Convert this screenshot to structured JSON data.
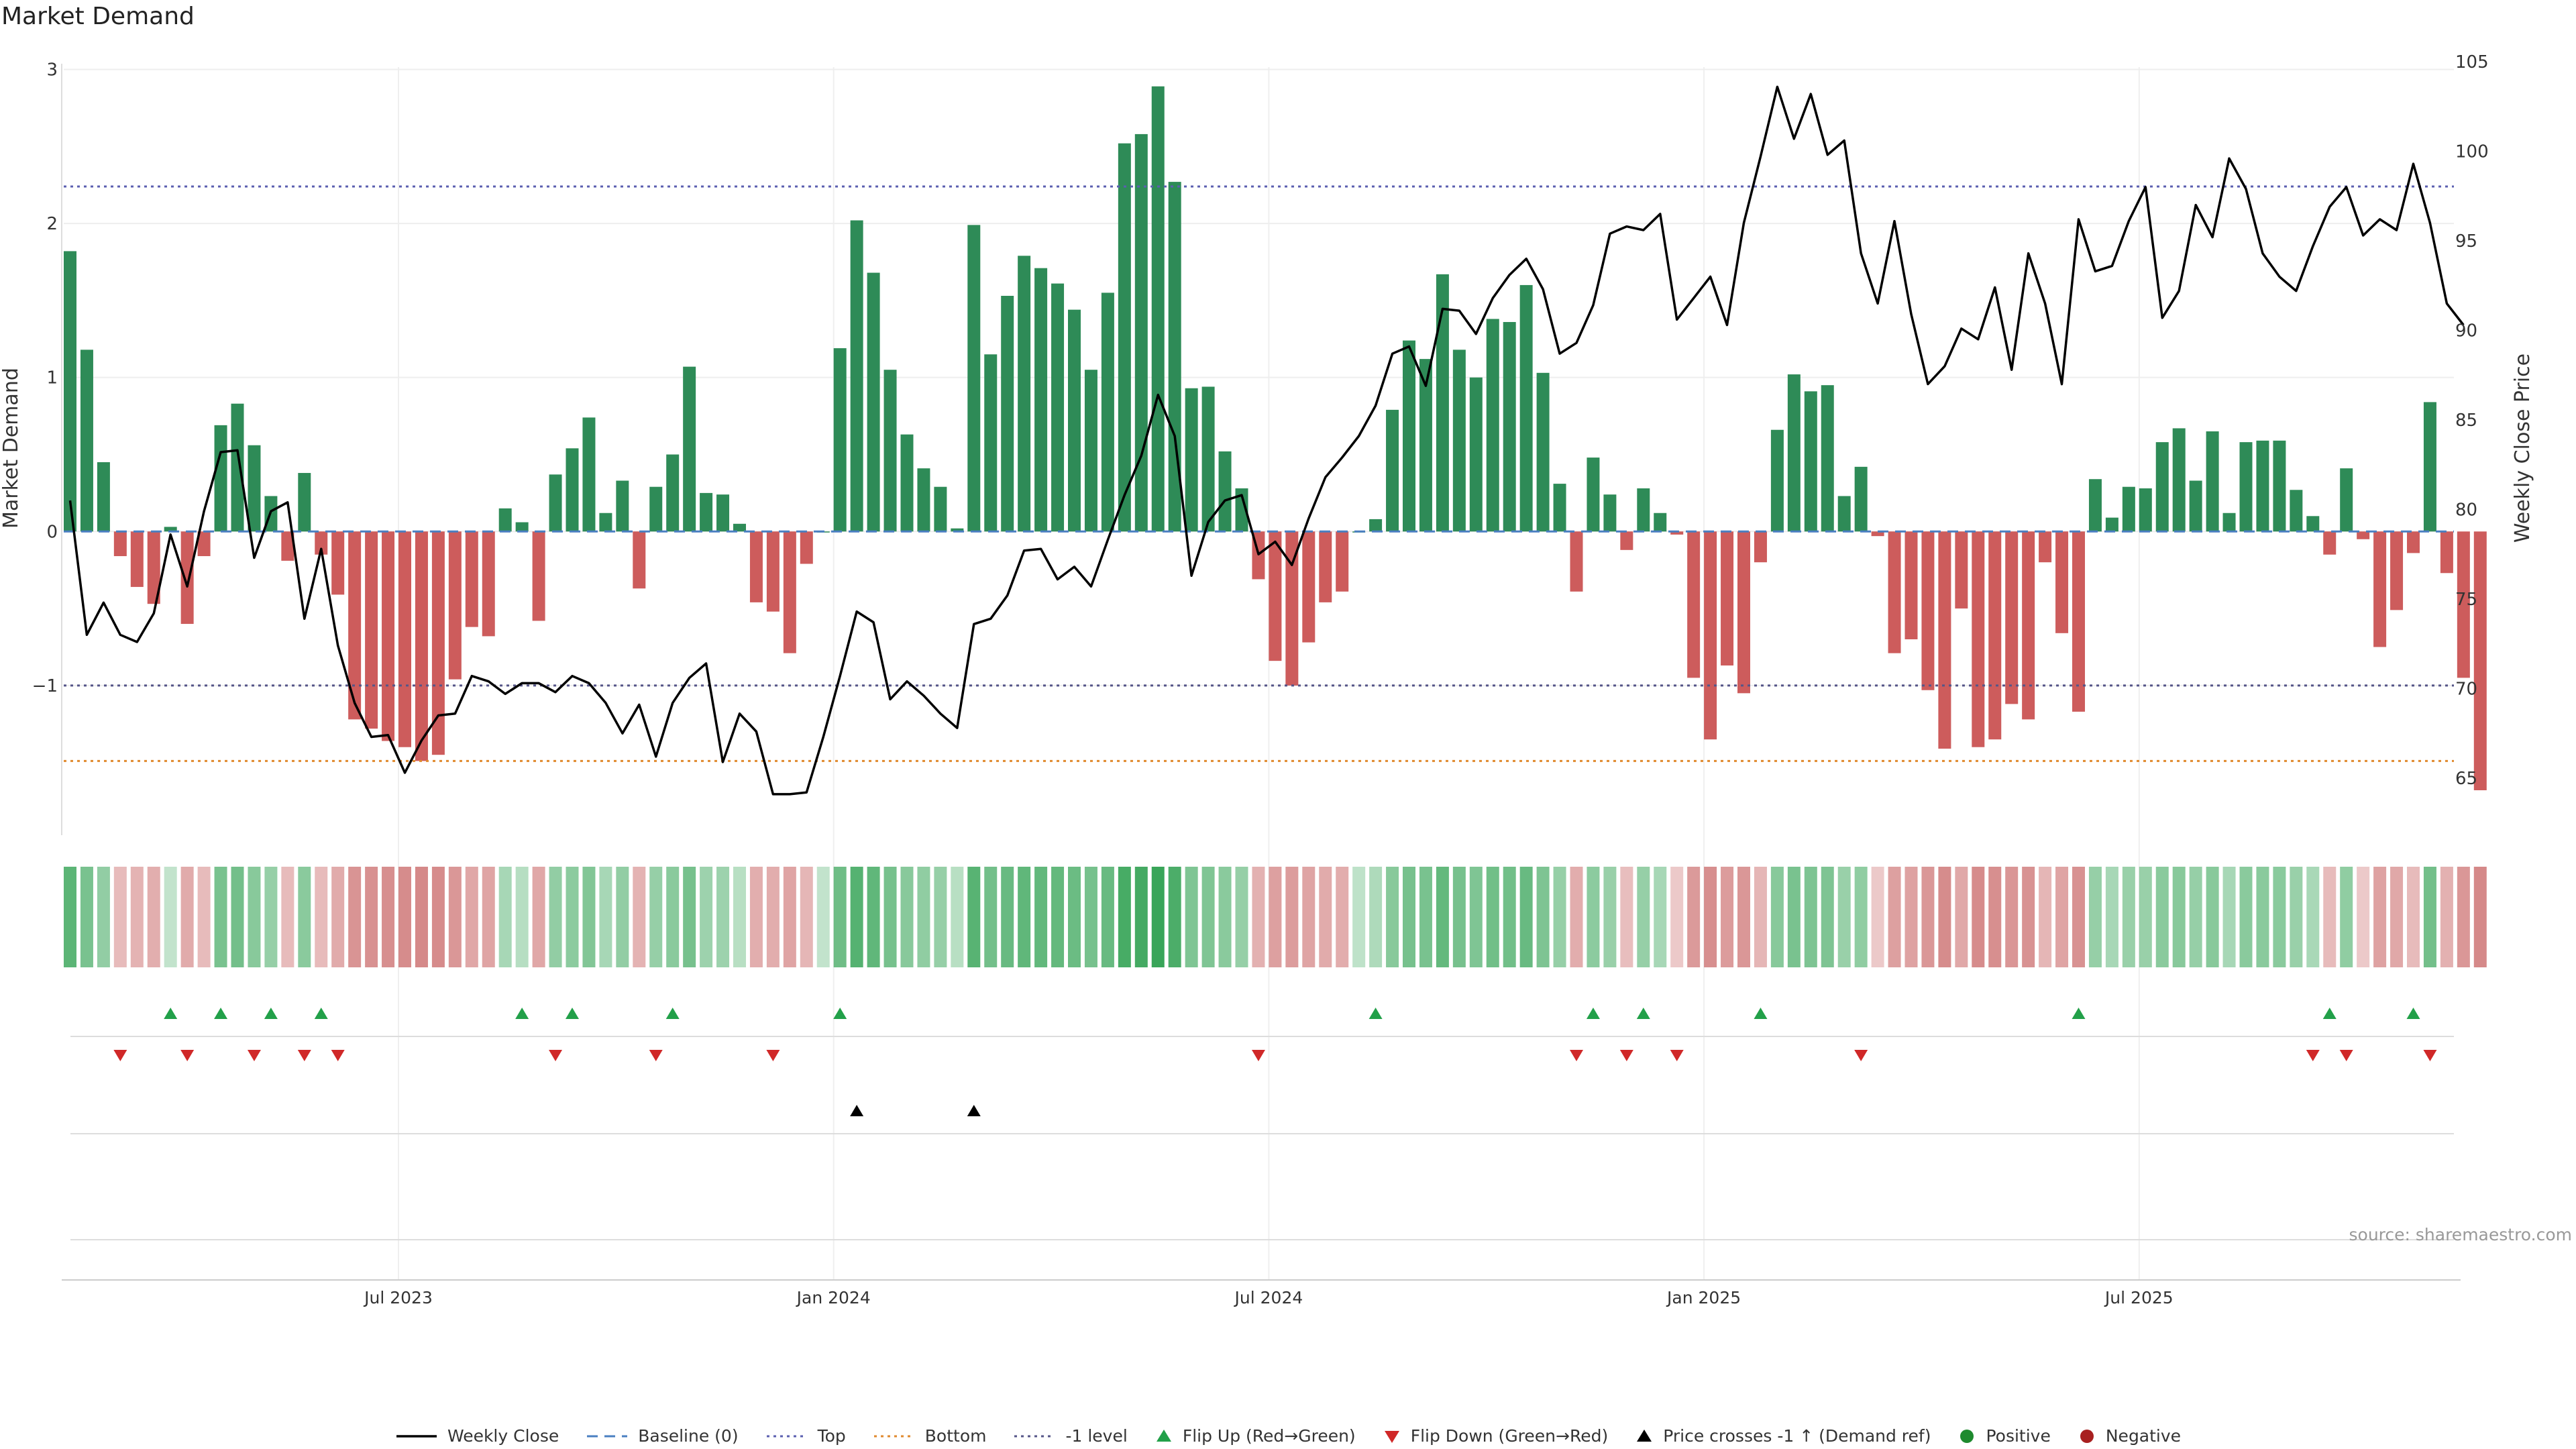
{
  "title": "Market Demand",
  "source": "source: sharemaestro.com",
  "colors": {
    "positive_bar": "#2e8b57",
    "negative_bar": "#cd5c5c",
    "price_line": "#000000",
    "baseline": "#4a7fc1",
    "top": "#5b5fb0",
    "bottom": "#e08a2e",
    "minus_one": "#555588",
    "flip_up": "#22a049",
    "flip_down": "#d02828",
    "price_cross": "#000000",
    "positive_dot": "#1e8a2e",
    "negative_dot": "#a82020"
  },
  "legend": [
    {
      "label": "Weekly Close",
      "kind": "line",
      "color": "#000000"
    },
    {
      "label": "Baseline (0)",
      "kind": "dash",
      "color": "#4a7fc1"
    },
    {
      "label": "Top",
      "kind": "dot",
      "color": "#5b5fb0"
    },
    {
      "label": "Bottom",
      "kind": "dot",
      "color": "#e08a2e"
    },
    {
      "label": "-1 level",
      "kind": "dot",
      "color": "#555588"
    },
    {
      "label": "Flip Up (Red→Green)",
      "kind": "tri-up",
      "color": "#22a049"
    },
    {
      "label": "Flip Down (Green→Red)",
      "kind": "tri-down",
      "color": "#d02828"
    },
    {
      "label": "Price crosses -1 ↑ (Demand ref)",
      "kind": "tri-up",
      "color": "#000000"
    },
    {
      "label": "Positive",
      "kind": "circle",
      "color": "#1e8a2e"
    },
    {
      "label": "Negative",
      "kind": "circle",
      "color": "#a82020"
    }
  ],
  "chart_data": {
    "type": "bar+line",
    "title": "Market Demand",
    "ylabel": "Market Demand",
    "y2label": "Weekly Close Price",
    "ylim": [
      -1.95,
      3.05
    ],
    "y2lim": [
      62,
      105
    ],
    "yticks": [
      "3",
      "2",
      "1",
      "0",
      "−1"
    ],
    "yticks_values": [
      3,
      2,
      1,
      0,
      -1
    ],
    "y2ticks": [
      "105",
      "100",
      "95",
      "90",
      "85",
      "80",
      "75",
      "70",
      "65"
    ],
    "y2ticks_values": [
      105,
      100,
      95,
      90,
      85,
      80,
      75,
      70,
      65
    ],
    "xticks": [
      {
        "label": "Jul 2023",
        "index": 20
      },
      {
        "label": "Jan 2024",
        "index": 46
      },
      {
        "label": "Jul 2024",
        "index": 72
      },
      {
        "label": "Jan 2025",
        "index": 98
      },
      {
        "label": "Jul 2025",
        "index": 124
      }
    ],
    "levels": {
      "baseline": 0,
      "top": 2.24,
      "bottom": -1.49,
      "minus_one": -1
    },
    "weeks": 144,
    "demand": [
      1.82,
      1.18,
      0.45,
      -0.16,
      -0.36,
      -0.47,
      0.03,
      -0.6,
      -0.16,
      0.69,
      0.83,
      0.56,
      0.23,
      -0.19,
      0.38,
      -0.15,
      -0.41,
      -1.22,
      -1.28,
      -1.36,
      -1.4,
      -1.49,
      -1.45,
      -0.96,
      -0.62,
      -0.68,
      0.15,
      0.06,
      -0.58,
      0.37,
      0.54,
      0.74,
      0.12,
      0.33,
      -0.37,
      0.29,
      0.5,
      1.07,
      0.25,
      0.24,
      0.05,
      -0.46,
      -0.52,
      -0.79,
      -0.21,
      0.0,
      1.19,
      2.02,
      1.68,
      1.05,
      0.63,
      0.41,
      0.29,
      0.02,
      1.99,
      1.15,
      1.53,
      1.79,
      1.71,
      1.61,
      1.44,
      1.05,
      1.55,
      2.52,
      2.58,
      2.89,
      2.27,
      0.93,
      0.94,
      0.52,
      0.28,
      -0.31,
      -0.84,
      -1.0,
      -0.72,
      -0.46,
      -0.39,
      0.0,
      0.08,
      0.79,
      1.24,
      1.12,
      1.67,
      1.18,
      1.0,
      1.38,
      1.36,
      1.6,
      1.03,
      0.31,
      -0.39,
      0.48,
      0.24,
      -0.12,
      0.28,
      0.12,
      -0.02,
      -0.95,
      -1.35,
      -0.87,
      -1.05,
      -0.2,
      0.66,
      1.02,
      0.91,
      0.95,
      0.23,
      0.42,
      -0.03,
      -0.79,
      -0.7,
      -1.03,
      -1.41,
      -0.5,
      -1.4,
      -1.35,
      -1.12,
      -1.22,
      -0.2,
      -0.66,
      -1.17,
      0.34,
      0.09,
      0.29,
      0.28,
      0.58,
      0.67,
      0.33,
      0.65,
      0.12,
      0.58,
      0.59,
      0.59,
      0.27,
      0.1,
      -0.15,
      0.41,
      -0.05,
      -0.75,
      -0.51,
      -0.14,
      0.84,
      -0.27,
      -0.95,
      -1.68
    ],
    "price": [
      80.5,
      73,
      74.8,
      73,
      72.6,
      74.2,
      78.6,
      75.7,
      79.9,
      83.2,
      83.3,
      77.3,
      79.9,
      80.4,
      73.9,
      77.8,
      72.4,
      69.2,
      67.3,
      67.4,
      65.3,
      67.1,
      68.5,
      68.6,
      70.7,
      70.4,
      69.7,
      70.3,
      70.3,
      69.8,
      70.7,
      70.3,
      69.2,
      67.5,
      69.1,
      66.2,
      69.2,
      70.6,
      71.4,
      65.9,
      68.6,
      67.6,
      64.1,
      64.1,
      64.2,
      67.3,
      70.7,
      74.3,
      73.7,
      69.4,
      70.4,
      69.6,
      68.6,
      67.8,
      73.6,
      73.9,
      75.2,
      77.7,
      77.8,
      76.1,
      76.8,
      75.7,
      78.3,
      80.8,
      83,
      86.4,
      84.1,
      76.3,
      79.3,
      80.5,
      80.8,
      77.5,
      78.2,
      76.9,
      79.5,
      81.8,
      82.9,
      84.1,
      85.8,
      88.7,
      89.1,
      86.9,
      91.2,
      91.1,
      89.8,
      91.8,
      93.1,
      94,
      92.3,
      88.7,
      89.3,
      91.4,
      95.4,
      95.8,
      95.6,
      96.5,
      90.6,
      91.8,
      93,
      90.3,
      96,
      99.7,
      103.6,
      100.7,
      103.2,
      99.8,
      100.6,
      94.3,
      91.5,
      96.1,
      90.9,
      87,
      88,
      90.1,
      89.5,
      92.4,
      87.8,
      94.3,
      91.5,
      87,
      96.2,
      93.3,
      93.6,
      96.1,
      98,
      90.7,
      92.2,
      97,
      95.2,
      99.6,
      97.9,
      94.3,
      93,
      92.2,
      94.7,
      96.9,
      98,
      95.3,
      96.2,
      95.6,
      99.3,
      96,
      91.5,
      90.3
    ]
  },
  "tiles": [
    0.78,
    0.58,
    0.42,
    -0.32,
    -0.38,
    -0.42,
    0.12,
    -0.45,
    -0.32,
    0.58,
    0.62,
    0.5,
    0.4,
    -0.32,
    0.48,
    -0.32,
    -0.45,
    -0.65,
    -0.68,
    -0.7,
    -0.72,
    -0.75,
    -0.74,
    -0.62,
    -0.5,
    -0.52,
    0.3,
    0.2,
    -0.5,
    0.42,
    0.46,
    0.54,
    0.3,
    0.42,
    -0.38,
    0.4,
    0.48,
    0.6,
    0.36,
    0.36,
    0.18,
    -0.42,
    -0.44,
    -0.52,
    -0.36,
    0.12,
    0.65,
    0.82,
    0.75,
    0.6,
    0.5,
    0.44,
    0.4,
    0.18,
    0.8,
    0.62,
    0.7,
    0.75,
    0.74,
    0.72,
    0.68,
    0.6,
    0.7,
    0.9,
    0.92,
    1.0,
    0.88,
    0.55,
    0.55,
    0.48,
    0.4,
    -0.4,
    -0.55,
    -0.58,
    -0.52,
    -0.45,
    -0.44,
    0.15,
    0.25,
    0.5,
    0.6,
    0.58,
    0.72,
    0.6,
    0.55,
    0.64,
    0.64,
    0.7,
    0.56,
    0.4,
    -0.44,
    0.46,
    0.38,
    -0.3,
    0.4,
    0.3,
    -0.2,
    -0.6,
    -0.7,
    -0.58,
    -0.62,
    -0.36,
    0.5,
    0.58,
    0.56,
    0.56,
    0.38,
    0.44,
    -0.2,
    -0.55,
    -0.54,
    -0.62,
    -0.72,
    -0.48,
    -0.72,
    -0.7,
    -0.64,
    -0.66,
    -0.36,
    -0.52,
    -0.66,
    0.4,
    0.3,
    0.38,
    0.38,
    0.48,
    0.5,
    0.4,
    0.5,
    0.3,
    0.48,
    0.48,
    0.48,
    0.38,
    0.28,
    -0.32,
    0.44,
    -0.2,
    -0.54,
    -0.48,
    -0.32,
    0.62,
    -0.4,
    -0.62,
    -0.75
  ],
  "flips_up": [
    6,
    9,
    12,
    15,
    27,
    30,
    36,
    46,
    78,
    91,
    94,
    101,
    120,
    135,
    140
  ],
  "flips_down": [
    3,
    7,
    11,
    14,
    16,
    29,
    35,
    42,
    71,
    90,
    93,
    96,
    107,
    134,
    136,
    141
  ],
  "price_crosses": [
    47,
    54
  ]
}
